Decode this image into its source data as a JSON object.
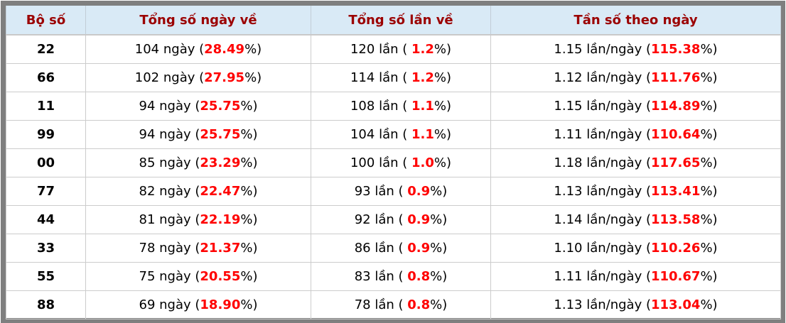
{
  "chart_data": {
    "type": "table",
    "title": "",
    "columns": [
      "Bộ số",
      "Tổng số ngày về",
      "Tổng số lần về",
      "Tần số theo ngày"
    ],
    "rows": [
      {
        "pair": "22",
        "days": "104 ngày",
        "days_pct": "28.49",
        "times": "120 lần",
        "times_pct": "1.2",
        "freq": "1.15 lần/ngày",
        "freq_pct": "115.38"
      },
      {
        "pair": "66",
        "days": "102 ngày",
        "days_pct": "27.95",
        "times": "114 lần",
        "times_pct": "1.2",
        "freq": "1.12 lần/ngày",
        "freq_pct": "111.76"
      },
      {
        "pair": "11",
        "days": "94 ngày",
        "days_pct": "25.75",
        "times": "108 lần",
        "times_pct": "1.1",
        "freq": "1.15 lần/ngày",
        "freq_pct": "114.89"
      },
      {
        "pair": "99",
        "days": "94 ngày",
        "days_pct": "25.75",
        "times": "104 lần",
        "times_pct": "1.1",
        "freq": "1.11 lần/ngày",
        "freq_pct": "110.64"
      },
      {
        "pair": "00",
        "days": "85 ngày",
        "days_pct": "23.29",
        "times": "100 lần",
        "times_pct": "1.0",
        "freq": "1.18 lần/ngày",
        "freq_pct": "117.65"
      },
      {
        "pair": "77",
        "days": "82 ngày",
        "days_pct": "22.47",
        "times": "93 lần",
        "times_pct": "0.9",
        "freq": "1.13 lần/ngày",
        "freq_pct": "113.41"
      },
      {
        "pair": "44",
        "days": "81 ngày",
        "days_pct": "22.19",
        "times": "92 lần",
        "times_pct": "0.9",
        "freq": "1.14 lần/ngày",
        "freq_pct": "113.58"
      },
      {
        "pair": "33",
        "days": "78 ngày",
        "days_pct": "21.37",
        "times": "86 lần",
        "times_pct": "0.9",
        "freq": "1.10 lần/ngày",
        "freq_pct": "110.26"
      },
      {
        "pair": "55",
        "days": "75 ngày",
        "days_pct": "20.55",
        "times": "83 lần",
        "times_pct": "0.8",
        "freq": "1.11 lần/ngày",
        "freq_pct": "110.67"
      },
      {
        "pair": "88",
        "days": "69 ngày",
        "days_pct": "18.90",
        "times": "78 lần",
        "times_pct": "0.8",
        "freq": "1.13 lần/ngày",
        "freq_pct": "113.04"
      }
    ]
  },
  "colors": {
    "header_bg": "#d9eaf6",
    "header_text": "#9b0000",
    "percent_red": "#ff0000",
    "frame_gray": "#7f7f7f",
    "grid_line": "#cccccc"
  }
}
